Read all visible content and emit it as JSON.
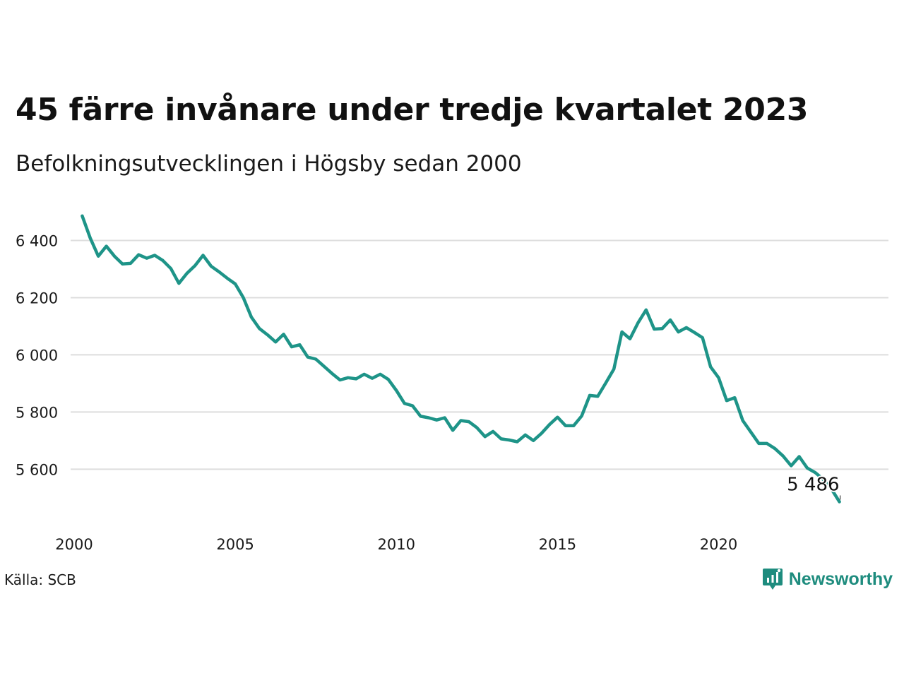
{
  "header": {
    "title": "45 färre invånare under tredje kvartalet 2023",
    "subtitle": "Befolkningsutvecklingen i Högsby sedan 2000"
  },
  "footer": {
    "source": "Källa: SCB",
    "brand_name": "Newsworthy",
    "brand_icon": "chart-speech-bubble-icon"
  },
  "colors": {
    "line": "#1e9488",
    "grid": "#dddddd",
    "brand": "#1e8c7e"
  },
  "chart_data": {
    "type": "line",
    "title": "45 färre invånare under tredje kvartalet 2023",
    "subtitle": "Befolkningsutvecklingen i Högsby sedan 2000",
    "xlabel": "",
    "ylabel": "",
    "x_ticks": [
      2000,
      2005,
      2010,
      2015,
      2020
    ],
    "x_tick_labels": [
      "2000",
      "2005",
      "2010",
      "2015",
      "2020"
    ],
    "y_ticks": [
      5600,
      5800,
      6000,
      6200,
      6400
    ],
    "y_tick_labels": [
      "5 600",
      "5 800",
      "6 000",
      "6 200",
      "6 400"
    ],
    "xlim": [
      2000.0,
      2024.0
    ],
    "ylim": [
      5460,
      6500
    ],
    "grid": "horizontal",
    "legend": "none",
    "end_label": "5 486",
    "series": [
      {
        "x": [
          2000.25,
          2000.5,
          2000.75,
          2001.0,
          2001.25,
          2001.5,
          2001.75,
          2002.0,
          2002.25,
          2002.5,
          2002.75,
          2003.0,
          2003.25,
          2003.5,
          2003.75,
          2004.0,
          2004.25,
          2004.5,
          2004.75,
          2005.0,
          2005.25,
          2005.5,
          2005.75,
          2006.0,
          2006.25,
          2006.5,
          2006.75,
          2007.0,
          2007.25,
          2007.5,
          2007.75,
          2008.0,
          2008.25,
          2008.5,
          2008.75,
          2009.0,
          2009.25,
          2009.5,
          2009.75,
          2010.0,
          2010.25,
          2010.5,
          2010.75,
          2011.0,
          2011.25,
          2011.5,
          2011.75,
          2012.0,
          2012.25,
          2012.5,
          2012.75,
          2013.0,
          2013.25,
          2013.5,
          2013.75,
          2014.0,
          2014.25,
          2014.5,
          2014.75,
          2015.0,
          2015.25,
          2015.5,
          2015.75,
          2016.0,
          2016.25,
          2016.5,
          2016.75,
          2017.0,
          2017.25,
          2017.5,
          2017.75,
          2018.0,
          2018.25,
          2018.5,
          2018.75,
          2019.0,
          2019.25,
          2019.5,
          2019.75,
          2020.0,
          2020.25,
          2020.5,
          2020.75,
          2021.0,
          2021.25,
          2021.5,
          2021.75,
          2022.0,
          2022.25,
          2022.5,
          2022.75,
          2023.0,
          2023.25,
          2023.5,
          2023.75
        ],
        "values": [
          6486,
          6408,
          6345,
          6380,
          6345,
          6318,
          6320,
          6350,
          6338,
          6348,
          6330,
          6302,
          6250,
          6285,
          6312,
          6348,
          6310,
          6290,
          6268,
          6248,
          6200,
          6132,
          6092,
          6070,
          6045,
          6072,
          6028,
          6035,
          5992,
          5985,
          5960,
          5935,
          5912,
          5920,
          5916,
          5932,
          5918,
          5932,
          5914,
          5875,
          5830,
          5822,
          5785,
          5780,
          5772,
          5780,
          5736,
          5770,
          5766,
          5745,
          5714,
          5732,
          5706,
          5702,
          5696,
          5720,
          5700,
          5725,
          5756,
          5782,
          5752,
          5752,
          5786,
          5858,
          5855,
          5902,
          5950,
          6080,
          6056,
          6112,
          6157,
          6090,
          6092,
          6122,
          6080,
          6095,
          6078,
          6060,
          5958,
          5920,
          5840,
          5850,
          5770,
          5730,
          5690,
          5690,
          5672,
          5646,
          5612,
          5644,
          5604,
          5588,
          5564,
          5531,
          5486
        ]
      }
    ]
  }
}
